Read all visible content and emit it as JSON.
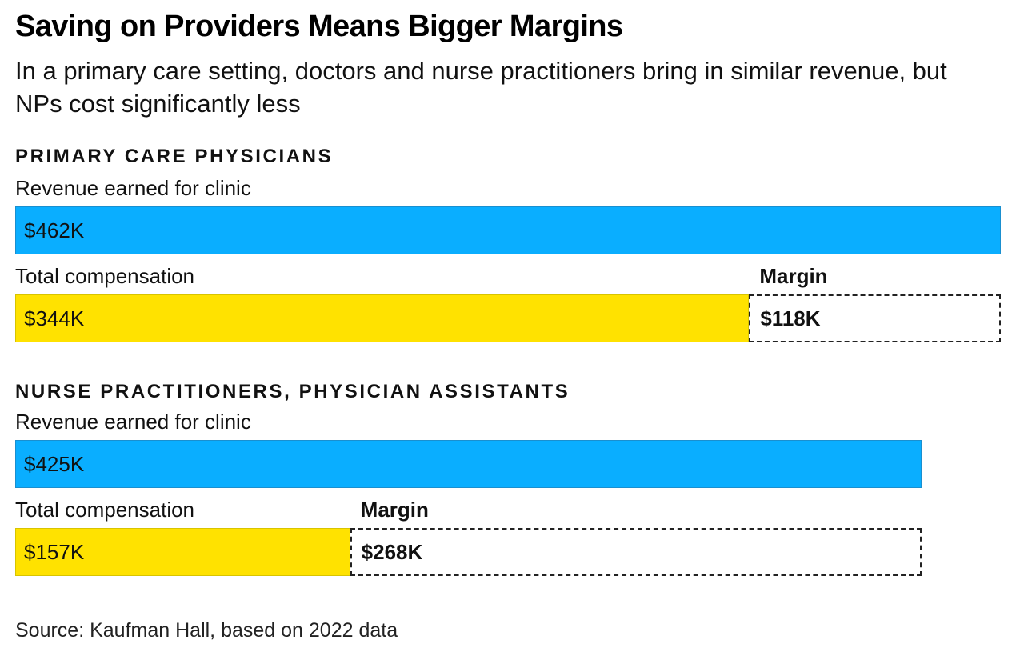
{
  "header": {
    "title": "Saving on Providers Means Bigger Margins",
    "subtitle": "In a primary care setting, doctors and nurse practitioners bring in similar revenue, but NPs cost significantly less"
  },
  "source": "Source: Kaufman Hall, based on 2022 data",
  "colors": {
    "revenue": "#0aaeff",
    "compensation": "#ffe200",
    "margin_border": "#222222"
  },
  "chart_data": [
    {
      "type": "bar",
      "title": "PRIMARY CARE PHYSICIANS",
      "revenue_label": "Revenue earned for clinic",
      "compensation_label": "Total compensation",
      "margin_heading": "Margin",
      "revenue": {
        "value": 462,
        "label": "$462K"
      },
      "compensation": {
        "value": 344,
        "label": "$344K"
      },
      "margin": {
        "value": 118,
        "label": "$118K"
      }
    },
    {
      "type": "bar",
      "title": "NURSE PRACTITIONERS, PHYSICIAN ASSISTANTS",
      "revenue_label": "Revenue earned for clinic",
      "compensation_label": "Total compensation",
      "margin_heading": "Margin",
      "revenue": {
        "value": 425,
        "label": "$425K"
      },
      "compensation": {
        "value": 157,
        "label": "$157K"
      },
      "margin": {
        "value": 268,
        "label": "$268K"
      }
    }
  ]
}
